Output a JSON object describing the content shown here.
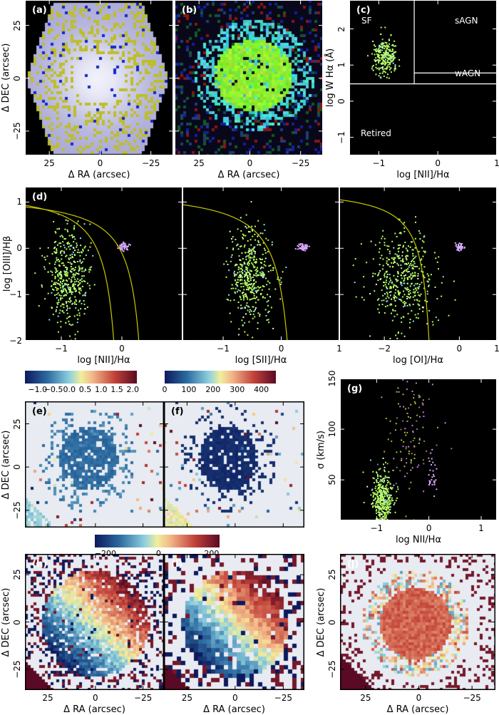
{
  "chart_data": [
    {
      "panel": "a",
      "type": "image",
      "label": "(a)",
      "xlabel": "Δ RA (arcsec)",
      "ylabel": "Δ DEC (arcsec)",
      "xlim": [
        37,
        -36
      ],
      "ylim": [
        -36.5,
        37
      ],
      "xticks": [
        25,
        0,
        -25
      ],
      "xtick_labels": [
        "25",
        "0",
        "−25"
      ],
      "yticks": [
        25,
        0,
        -25
      ],
      "ytick_labels": [
        "25",
        "0",
        "−25"
      ],
      "background": "#000000"
    },
    {
      "panel": "b",
      "type": "image",
      "label": "(b)",
      "xlabel": "Δ RA (arcsec)",
      "ylabel": "",
      "xlim": [
        37,
        -36
      ],
      "ylim": [
        -36.5,
        37
      ],
      "xticks": [
        25,
        0,
        -25
      ],
      "xtick_labels": [
        "25",
        "0",
        "−25"
      ],
      "yticks": [
        25,
        0,
        -25
      ],
      "ytick_labels": [],
      "background": "#000000"
    },
    {
      "panel": "c",
      "type": "scatter",
      "label": "(c)",
      "xlabel": "log [NII]/Hα",
      "ylabel": "log W Hα (Å)",
      "xlim": [
        -1.5,
        1
      ],
      "ylim": [
        -1.5,
        2.8
      ],
      "xticks": [
        -1,
        0,
        1
      ],
      "xtick_labels": [
        "−1",
        "0",
        "1"
      ],
      "yticks": [
        2,
        1,
        0,
        -1
      ],
      "ytick_labels": [
        "2",
        "1",
        "0",
        "−1"
      ],
      "regions": [
        "SF",
        "sAGN",
        "wAGN",
        "Retired"
      ],
      "lines": {
        "sf_agn_x": -0.4,
        "ew_retired": 0.48,
        "ew_wagn": 0.78
      },
      "clusters": [
        {
          "x": -0.9,
          "y": 1.25,
          "sx": 0.1,
          "sy": 0.25,
          "n": 260
        }
      ]
    },
    {
      "panel": "d1",
      "type": "scatter",
      "label": "(d)",
      "xlabel": "log [NII]/Hα",
      "ylabel": "log [OIII]/Hβ",
      "xlim": [
        -1.6,
        1
      ],
      "ylim": [
        -2,
        1.33
      ],
      "xticks": [
        -1,
        0
      ],
      "xtick_labels": [
        "−1",
        "0"
      ],
      "yticks": [
        1,
        0,
        -1,
        -2
      ],
      "ytick_labels": [
        "1",
        "0",
        "−1",
        "−2"
      ],
      "curves": [
        "Kauffmann03",
        "Kewley01"
      ],
      "clusters": [
        {
          "x": -0.9,
          "y": -0.6,
          "sx": 0.18,
          "sy": 0.5,
          "n": 450
        },
        {
          "x": 0.02,
          "y": 0.05,
          "sx": 0.05,
          "sy": 0.04,
          "n": 50
        }
      ]
    },
    {
      "panel": "d2",
      "type": "scatter",
      "label": "",
      "xlabel": "log [SII]/Hα",
      "ylabel": "",
      "xlim": [
        -1.7,
        1
      ],
      "ylim": [
        -2,
        1.33
      ],
      "xticks": [
        1,
        -1,
        0
      ],
      "xtick_labels": [
        "1",
        "−1",
        "0"
      ],
      "yticks": [
        1,
        0,
        -1,
        -2
      ],
      "ytick_labels": [],
      "curves": [
        "Kewley01"
      ],
      "clusters": [
        {
          "x": -0.55,
          "y": -0.6,
          "sx": 0.2,
          "sy": 0.5,
          "n": 450
        },
        {
          "x": 0.35,
          "y": 0.05,
          "sx": 0.05,
          "sy": 0.04,
          "n": 50
        }
      ]
    },
    {
      "panel": "d3",
      "type": "scatter",
      "label": "",
      "xlabel": "log [OI]/Hα",
      "ylabel": "",
      "xlim": [
        -3.2,
        1
      ],
      "ylim": [
        -2,
        1.33
      ],
      "xticks": [
        1,
        -2,
        0
      ],
      "xtick_labels": [
        "1",
        "−2",
        "0"
      ],
      "yticks": [
        1,
        0,
        -1,
        -2
      ],
      "ytick_labels": [],
      "curves": [
        "Kewley01"
      ],
      "clusters": [
        {
          "x": -1.5,
          "y": -0.6,
          "sx": 0.45,
          "sy": 0.5,
          "n": 450
        },
        {
          "x": 0.0,
          "y": 0.05,
          "sx": 0.06,
          "sy": 0.04,
          "n": 50
        }
      ]
    },
    {
      "panel": "e",
      "type": "map",
      "label": "(e)",
      "xlabel": "",
      "ylabel": "Δ DEC (arcsec)",
      "xlim": [
        37,
        -36
      ],
      "ylim": [
        -35,
        38
      ],
      "xticks": [
        25,
        0,
        -25
      ],
      "xtick_labels": [],
      "yticks": [
        25,
        0,
        -25
      ],
      "ytick_labels": [
        "25",
        "0",
        "−25"
      ],
      "colorbar": {
        "range": [
          -1.4,
          2.13
        ],
        "ticks": [
          -1.0,
          -0.5,
          0.0,
          0.5,
          1.0,
          1.5,
          2.0
        ],
        "tick_labels": [
          "−1.0",
          "−0.5",
          "0.0",
          "0.5",
          "1.0",
          "1.5",
          "2.0"
        ]
      }
    },
    {
      "panel": "f",
      "type": "map",
      "label": "(f)",
      "xlabel": "",
      "ylabel": "",
      "xlim": [
        37,
        -36
      ],
      "ylim": [
        -35,
        38
      ],
      "xticks": [
        25,
        0,
        -25
      ],
      "xtick_labels": [],
      "yticks": [
        25,
        0,
        -25
      ],
      "ytick_labels": [],
      "colorbar": {
        "range": [
          0,
          460
        ],
        "ticks": [
          0,
          100,
          200,
          300,
          400
        ],
        "tick_labels": [
          "0",
          "100",
          "200",
          "300",
          "400"
        ]
      }
    },
    {
      "panel": "g",
      "type": "scatter",
      "label": "(g)",
      "xlabel": "log NII/Hα",
      "ylabel": "σ (km/s)",
      "xlim": [
        -1.7,
        1.3
      ],
      "ylim": [
        10,
        150
      ],
      "xticks": [
        -1,
        0,
        1
      ],
      "xtick_labels": [
        "−1",
        "0",
        "1"
      ],
      "yticks": [
        150,
        100,
        50
      ],
      "ytick_labels": [
        "150",
        "100",
        "50"
      ],
      "clusters": [
        {
          "x": -0.9,
          "y": 30,
          "sx": 0.1,
          "sy": 15,
          "n": 380
        },
        {
          "x": -0.35,
          "y": 95,
          "sx": 0.25,
          "sy": 30,
          "n": 120
        },
        {
          "x": 0.05,
          "y": 55,
          "sx": 0.05,
          "sy": 10,
          "n": 30
        }
      ]
    },
    {
      "panel": "h",
      "type": "map",
      "label": "(h)",
      "xlabel": "Δ RA (arcsec)",
      "ylabel": "Δ DEC (arcsec)",
      "xlim": [
        37,
        -36
      ],
      "ylim": [
        -36,
        36
      ],
      "xticks": [
        25,
        0,
        -25
      ],
      "xtick_labels": [
        "25",
        "0",
        "−25"
      ],
      "yticks": [
        25,
        0,
        -25
      ],
      "ytick_labels": [
        "25",
        "0",
        "−25"
      ],
      "colorbar": {
        "range": [
          -240,
          230
        ],
        "ticks": [
          -200,
          0,
          200
        ],
        "tick_labels": [
          "−200",
          "0",
          "200"
        ]
      }
    },
    {
      "panel": "i",
      "type": "map",
      "label": "(i)",
      "xlabel": "Δ RA (arcsec)",
      "ylabel": "",
      "xlim": [
        37,
        -36
      ],
      "ylim": [
        -36,
        36
      ],
      "xticks": [
        25,
        0,
        -25
      ],
      "xtick_labels": [
        "25",
        "0",
        "−25"
      ],
      "yticks": [
        25,
        0,
        -25
      ],
      "ytick_labels": []
    },
    {
      "panel": "j",
      "type": "map",
      "label": "(j)",
      "xlabel": "Δ RA (arcsec)",
      "ylabel": "Δ DEC (arcsec)",
      "xlim": [
        37,
        -36
      ],
      "ylim": [
        -36,
        36
      ],
      "xticks": [
        25,
        0,
        -25
      ],
      "xtick_labels": [
        "25",
        "0",
        "−25"
      ],
      "yticks": [
        25,
        0,
        -25
      ],
      "ytick_labels": [
        "25",
        "0",
        "−25"
      ]
    }
  ],
  "colors": {
    "curve": "#c8c800",
    "sf_points": "#b8ff60",
    "agn_points": "#d8a8ff",
    "map_background": "#e8ebf2"
  }
}
